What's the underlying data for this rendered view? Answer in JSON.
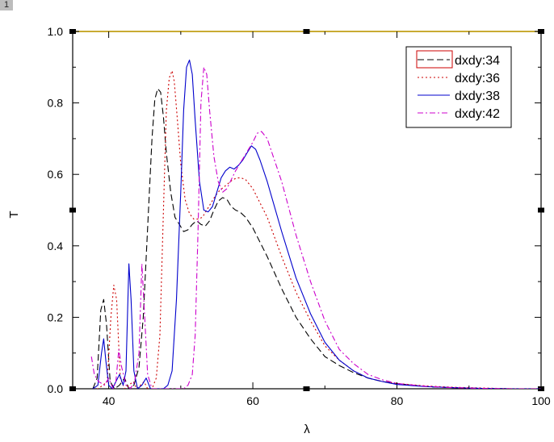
{
  "corner_badge": "1",
  "chart_data": {
    "type": "line",
    "xlabel": "λ",
    "ylabel": "T",
    "xlim": [
      35,
      100
    ],
    "ylim": [
      0,
      1.0
    ],
    "x_ticks": [
      40,
      60,
      80,
      100
    ],
    "y_ticks": [
      "0.0",
      "0.2",
      "0.4",
      "0.6",
      "0.8",
      "1.0"
    ],
    "grid": false,
    "legend_position": "top-right",
    "series": [
      {
        "name": "dxdy:34",
        "color": "#000000",
        "dash": "dashed",
        "x": [
          37.8,
          38.4,
          38.9,
          39.3,
          39.7,
          40.2,
          40.8,
          41.5,
          42.2,
          42.8,
          43.5,
          44.2,
          44.8,
          45.4,
          46.0,
          46.4,
          46.8,
          47.2,
          47.6,
          48.0,
          48.6,
          49.2,
          49.8,
          50.4,
          51.0,
          51.6,
          52.2,
          52.8,
          53.4,
          54.0,
          54.6,
          55.2,
          55.8,
          56.4,
          57.0,
          57.6,
          58.2,
          59.0,
          60.0,
          62.0,
          64.0,
          66.0,
          68.0,
          70.0,
          72.0,
          74.0,
          76.0,
          78.0,
          80.0,
          82.0,
          85.0,
          88.0,
          92.0,
          96.0,
          100.0
        ],
        "y": [
          0.0,
          0.03,
          0.22,
          0.25,
          0.18,
          0.02,
          0.0,
          0.01,
          0.03,
          0.0,
          0.01,
          0.06,
          0.2,
          0.45,
          0.7,
          0.81,
          0.84,
          0.83,
          0.76,
          0.66,
          0.55,
          0.48,
          0.46,
          0.44,
          0.445,
          0.46,
          0.47,
          0.46,
          0.455,
          0.47,
          0.5,
          0.525,
          0.535,
          0.53,
          0.51,
          0.5,
          0.495,
          0.48,
          0.45,
          0.37,
          0.28,
          0.2,
          0.14,
          0.09,
          0.065,
          0.045,
          0.03,
          0.02,
          0.015,
          0.01,
          0.005,
          0.003,
          0.001,
          0.0,
          0.0
        ]
      },
      {
        "name": "dxdy:36",
        "color": "#cc0000",
        "dash": "dotted",
        "x": [
          37.8,
          38.5,
          39.2,
          39.8,
          40.3,
          40.7,
          41.1,
          41.6,
          42.2,
          42.8,
          43.4,
          43.9,
          44.4,
          44.9,
          45.4,
          46.0,
          46.6,
          47.1,
          47.6,
          48.0,
          48.4,
          48.8,
          49.1,
          49.5,
          50.0,
          50.6,
          51.2,
          51.8,
          52.4,
          53.0,
          53.6,
          54.2,
          54.8,
          55.4,
          56.0,
          56.6,
          57.2,
          57.8,
          58.4,
          59.0,
          60.0,
          62.0,
          64.0,
          66.0,
          68.0,
          70.0,
          72.0,
          74.0,
          76.0,
          78.0,
          80.0,
          84.0,
          88.0,
          92.0,
          96.0,
          100.0
        ],
        "y": [
          0.0,
          0.0,
          0.01,
          0.02,
          0.2,
          0.29,
          0.25,
          0.03,
          0.0,
          0.01,
          0.02,
          0.0,
          0.01,
          0.02,
          0.0,
          0.0,
          0.03,
          0.15,
          0.5,
          0.78,
          0.87,
          0.89,
          0.86,
          0.76,
          0.63,
          0.53,
          0.49,
          0.475,
          0.475,
          0.48,
          0.5,
          0.52,
          0.54,
          0.555,
          0.565,
          0.575,
          0.585,
          0.59,
          0.59,
          0.585,
          0.56,
          0.48,
          0.37,
          0.27,
          0.19,
          0.12,
          0.08,
          0.05,
          0.03,
          0.02,
          0.015,
          0.008,
          0.004,
          0.002,
          0.0,
          0.0
        ]
      },
      {
        "name": "dxdy:38",
        "color": "#0000cc",
        "dash": "solid",
        "x": [
          37.8,
          38.5,
          39.0,
          39.3,
          39.6,
          40.0,
          40.5,
          41.0,
          41.5,
          42.0,
          42.4,
          42.8,
          43.1,
          43.5,
          44.0,
          44.6,
          45.2,
          45.8,
          46.4,
          47.0,
          47.6,
          48.2,
          48.8,
          49.4,
          50.0,
          50.4,
          50.8,
          51.2,
          51.6,
          52.0,
          52.6,
          53.2,
          53.8,
          54.4,
          55.0,
          55.6,
          56.2,
          56.8,
          57.4,
          58.0,
          58.6,
          59.2,
          59.8,
          60.4,
          61.0,
          62.0,
          64.0,
          66.0,
          68.0,
          70.0,
          72.0,
          74.0,
          76.0,
          78.0,
          80.0,
          84.0,
          88.0,
          92.0,
          96.0,
          100.0
        ],
        "y": [
          0.0,
          0.01,
          0.1,
          0.14,
          0.08,
          0.01,
          0.0,
          0.02,
          0.04,
          0.01,
          0.05,
          0.35,
          0.25,
          0.05,
          0.0,
          0.01,
          0.03,
          0.0,
          0.0,
          0.0,
          0.0,
          0.01,
          0.05,
          0.25,
          0.55,
          0.78,
          0.9,
          0.92,
          0.88,
          0.75,
          0.58,
          0.5,
          0.495,
          0.51,
          0.55,
          0.59,
          0.61,
          0.62,
          0.615,
          0.625,
          0.64,
          0.66,
          0.68,
          0.67,
          0.64,
          0.58,
          0.44,
          0.31,
          0.21,
          0.13,
          0.08,
          0.05,
          0.03,
          0.02,
          0.012,
          0.006,
          0.003,
          0.001,
          0.0,
          0.0
        ]
      },
      {
        "name": "dxdy:42",
        "color": "#cc00cc",
        "dash": "dashdot",
        "x": [
          37.6,
          38.0,
          38.6,
          39.4,
          40.0,
          40.6,
          41.0,
          41.4,
          41.8,
          42.4,
          43.0,
          43.6,
          44.2,
          44.6,
          45.0,
          45.4,
          46.0,
          47.0,
          48.0,
          49.0,
          49.8,
          50.4,
          51.0,
          51.6,
          52.0,
          52.4,
          52.8,
          53.2,
          53.6,
          54.0,
          54.6,
          55.2,
          55.8,
          56.4,
          57.0,
          57.6,
          58.2,
          58.8,
          59.4,
          60.0,
          60.6,
          61.2,
          62.0,
          64.0,
          66.0,
          68.0,
          70.0,
          72.0,
          74.0,
          76.0,
          78.0,
          80.0,
          84.0,
          88.0,
          92.0,
          96.0,
          100.0
        ],
        "y": [
          0.09,
          0.04,
          0.02,
          0.01,
          0.03,
          0.0,
          0.02,
          0.11,
          0.06,
          0.01,
          0.0,
          0.02,
          0.1,
          0.35,
          0.2,
          0.04,
          0.0,
          0.0,
          0.0,
          0.0,
          0.0,
          0.0,
          0.01,
          0.04,
          0.15,
          0.45,
          0.8,
          0.9,
          0.88,
          0.78,
          0.65,
          0.58,
          0.55,
          0.56,
          0.585,
          0.61,
          0.63,
          0.65,
          0.67,
          0.69,
          0.715,
          0.72,
          0.7,
          0.58,
          0.43,
          0.3,
          0.19,
          0.11,
          0.07,
          0.04,
          0.025,
          0.015,
          0.007,
          0.003,
          0.001,
          0.0,
          0.0
        ]
      }
    ]
  }
}
